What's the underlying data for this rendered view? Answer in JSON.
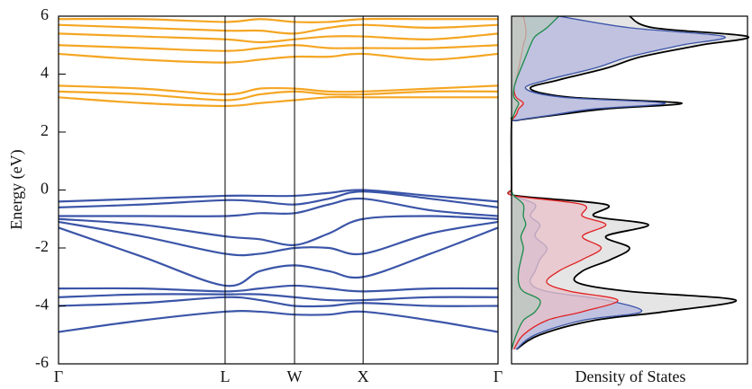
{
  "chart_data": [
    {
      "type": "line",
      "ylabel": "Energy (eV)",
      "x": [
        0,
        0.19,
        0.379,
        0.458,
        0.537,
        0.615,
        0.693,
        0.846,
        1
      ],
      "xlim": [
        0,
        1
      ],
      "xticks": [
        {
          "value": 0,
          "label": "Γ"
        },
        {
          "value": 0.379,
          "label": "L"
        },
        {
          "value": 0.537,
          "label": "W"
        },
        {
          "value": 0.693,
          "label": "X"
        },
        {
          "value": 1,
          "label": "Γ"
        }
      ],
      "ylim": [
        -6,
        6
      ],
      "yticks": [
        -6,
        -4,
        -2,
        0,
        2,
        4,
        6
      ],
      "series": [
        {
          "color": "#3b55a8",
          "values": [
            -0.4,
            -0.3,
            -0.2,
            -0.2,
            -0.2,
            -0.1,
            0,
            -0.2,
            -0.4
          ]
        },
        {
          "color": "#3b55a8",
          "values": [
            -0.6,
            -0.5,
            -0.35,
            -0.4,
            -0.5,
            -0.3,
            -0.05,
            -0.3,
            -0.6
          ]
        },
        {
          "color": "#3b55a8",
          "values": [
            -0.9,
            -0.9,
            -0.9,
            -0.8,
            -0.8,
            -0.5,
            -0.3,
            -0.7,
            -0.9
          ]
        },
        {
          "color": "#3b55a8",
          "values": [
            -1.0,
            -1.2,
            -1.6,
            -1.7,
            -1.9,
            -1.5,
            -1.0,
            -0.9,
            -1.0
          ]
        },
        {
          "color": "#3b55a8",
          "values": [
            -1.1,
            -1.6,
            -2.2,
            -2.2,
            -2.0,
            -2.0,
            -2.2,
            -1.5,
            -1.1
          ]
        },
        {
          "color": "#3b55a8",
          "values": [
            -1.3,
            -2.3,
            -3.3,
            -2.8,
            -2.6,
            -2.8,
            -3.0,
            -2.2,
            -1.3
          ]
        },
        {
          "color": "#3b55a8",
          "values": [
            -3.4,
            -3.4,
            -3.5,
            -3.4,
            -3.3,
            -3.4,
            -3.5,
            -3.4,
            -3.4
          ]
        },
        {
          "color": "#3b55a8",
          "values": [
            -3.7,
            -3.6,
            -3.6,
            -3.6,
            -3.7,
            -3.8,
            -3.8,
            -3.7,
            -3.7
          ]
        },
        {
          "color": "#3b55a8",
          "values": [
            -4.0,
            -3.9,
            -3.7,
            -3.8,
            -4.0,
            -4.0,
            -3.9,
            -4.0,
            -4.0
          ]
        },
        {
          "color": "#3b55a8",
          "values": [
            -4.9,
            -4.5,
            -4.2,
            -4.2,
            -4.3,
            -4.3,
            -4.2,
            -4.5,
            -4.9
          ]
        },
        {
          "color": "#f5a623",
          "values": [
            3.2,
            3.0,
            2.9,
            3.0,
            3.1,
            3.2,
            3.2,
            3.2,
            3.2
          ]
        },
        {
          "color": "#f5a623",
          "values": [
            3.4,
            3.3,
            3.1,
            3.3,
            3.4,
            3.3,
            3.3,
            3.4,
            3.4
          ]
        },
        {
          "color": "#f5a623",
          "values": [
            3.6,
            3.5,
            3.3,
            3.5,
            3.5,
            3.4,
            3.4,
            3.5,
            3.6
          ]
        },
        {
          "color": "#f5a623",
          "values": [
            4.7,
            4.5,
            4.4,
            4.5,
            4.6,
            4.6,
            4.7,
            4.5,
            4.7
          ]
        },
        {
          "color": "#f5a623",
          "values": [
            5.0,
            4.9,
            4.8,
            4.9,
            5.0,
            4.9,
            4.9,
            4.9,
            5.0
          ]
        },
        {
          "color": "#f5a623",
          "values": [
            5.4,
            5.3,
            5.2,
            5.1,
            5.2,
            5.3,
            5.3,
            5.2,
            5.4
          ]
        },
        {
          "color": "#f5a623",
          "values": [
            5.7,
            5.6,
            5.5,
            5.5,
            5.4,
            5.6,
            5.7,
            5.6,
            5.7
          ]
        },
        {
          "color": "#f5a623",
          "values": [
            5.9,
            5.9,
            5.8,
            5.9,
            5.8,
            5.8,
            5.9,
            5.9,
            5.9
          ]
        }
      ]
    },
    {
      "type": "area",
      "xlabel": "Density of States",
      "y": [
        -5.5,
        -5,
        -4.5,
        -4.2,
        -3.8,
        -3.5,
        -3.2,
        -2.8,
        -2.4,
        -2,
        -1.6,
        -1.2,
        -0.9,
        -0.5,
        -0.2,
        0,
        0.1,
        2.3,
        2.4,
        2.6,
        2.8,
        3,
        3.2,
        3.5,
        3.8,
        4.2,
        4.6,
        5,
        5.3,
        5.6,
        6
      ],
      "xlim": [
        0,
        1
      ],
      "ylim": [
        -6,
        6
      ],
      "series": [
        {
          "color": "#000000",
          "fill": "#dcdcdc",
          "values": [
            0.02,
            0.12,
            0.35,
            0.65,
            0.95,
            0.5,
            0.28,
            0.3,
            0.42,
            0.5,
            0.4,
            0.58,
            0.35,
            0.4,
            0.02,
            0,
            0,
            0,
            0.02,
            0.2,
            0.4,
            0.72,
            0.25,
            0.08,
            0.2,
            0.4,
            0.55,
            0.8,
            1.0,
            0.6,
            0.5
          ]
        },
        {
          "color": "#3b55a8",
          "fill": "#b3b6dd",
          "values": [
            0.02,
            0.1,
            0.3,
            0.55,
            0.4,
            0.15,
            0.08,
            0.1,
            0.12,
            0.15,
            0.1,
            0.12,
            0.08,
            0.1,
            0.01,
            0,
            0,
            0,
            0.02,
            0.18,
            0.35,
            0.65,
            0.22,
            0.06,
            0.15,
            0.35,
            0.5,
            0.72,
            0.9,
            0.5,
            0.2
          ]
        },
        {
          "color": "#e02020",
          "fill": "#e8c0c8",
          "values": [
            0.01,
            0.05,
            0.15,
            0.3,
            0.45,
            0.25,
            0.15,
            0.2,
            0.3,
            0.38,
            0.3,
            0.4,
            0.3,
            0.3,
            0.01,
            0,
            0,
            0,
            0,
            0.02,
            0.03,
            0.05,
            0.02,
            0.01,
            0.02,
            0.03,
            0.04,
            0.05,
            0.06,
            0.06,
            0.05
          ]
        },
        {
          "color": "#1a8a4a",
          "fill": "#b8c8c0",
          "values": [
            0,
            0.02,
            0.05,
            0.1,
            0.12,
            0.05,
            0.03,
            0.03,
            0.04,
            0.05,
            0.04,
            0.06,
            0.05,
            0.05,
            0.01,
            0,
            0,
            0,
            0,
            0.01,
            0.02,
            0.03,
            0.01,
            0.01,
            0.02,
            0.04,
            0.06,
            0.08,
            0.1,
            0.15,
            0.2
          ]
        }
      ]
    }
  ]
}
